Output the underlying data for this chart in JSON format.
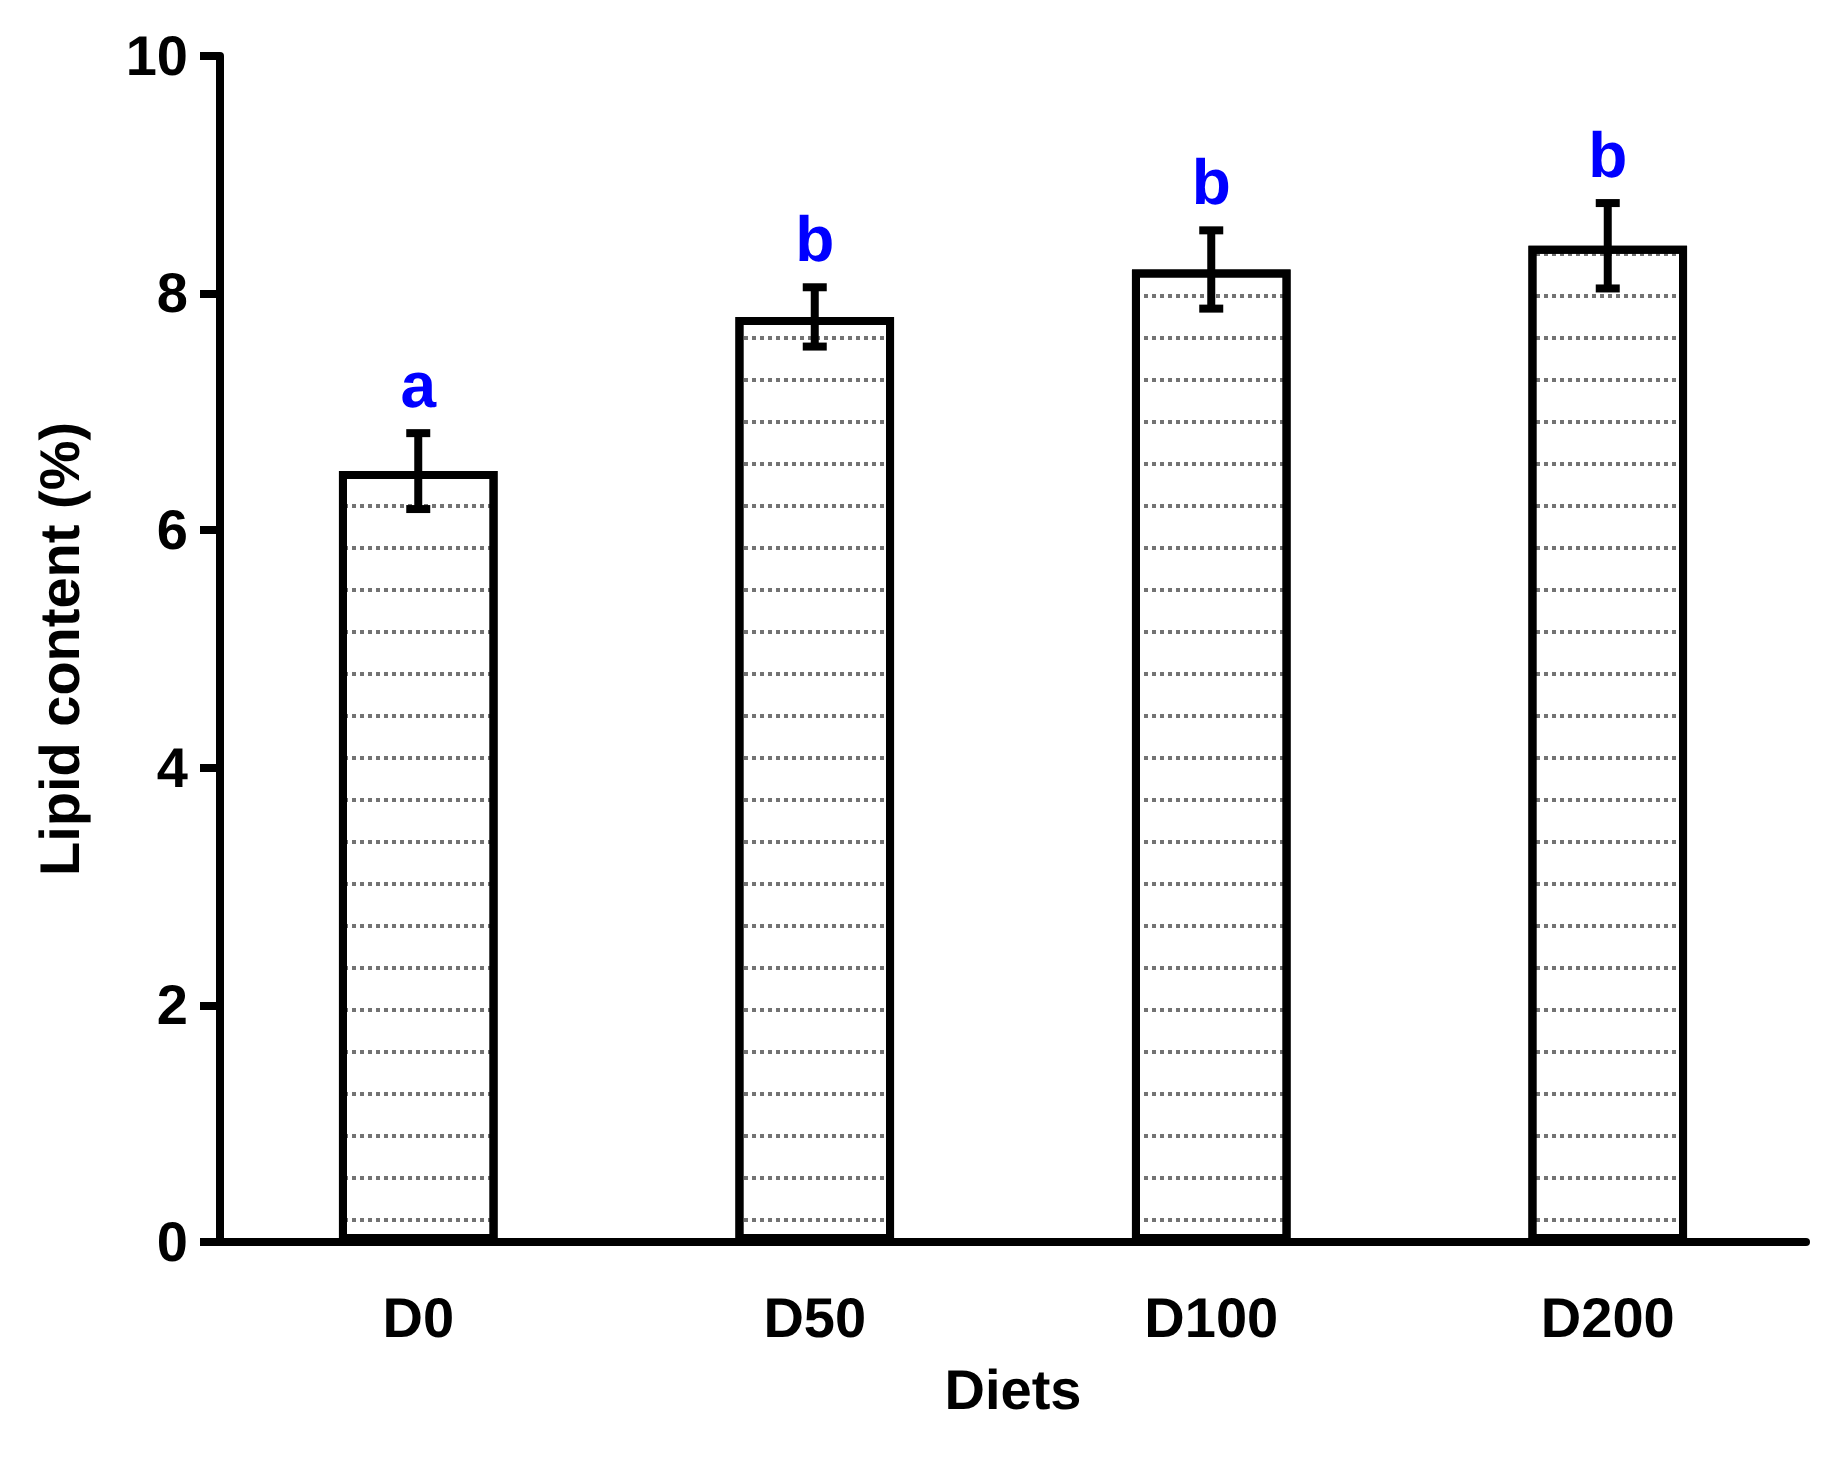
{
  "chart_data": {
    "type": "bar",
    "xlabel": "Diets",
    "ylabel": "Lipid content (%)",
    "categories": [
      "D0",
      "D50",
      "D100",
      "D200"
    ],
    "values": [
      6.5,
      7.8,
      8.2,
      8.4
    ],
    "errors": [
      0.32,
      0.25,
      0.33,
      0.36
    ],
    "color": "#ffffff",
    "ylim": [
      0,
      10
    ],
    "yticks": [
      0,
      2,
      4,
      6,
      8,
      10
    ],
    "grid": false,
    "annotations": [
      "a",
      "b",
      "b",
      "b"
    ]
  }
}
